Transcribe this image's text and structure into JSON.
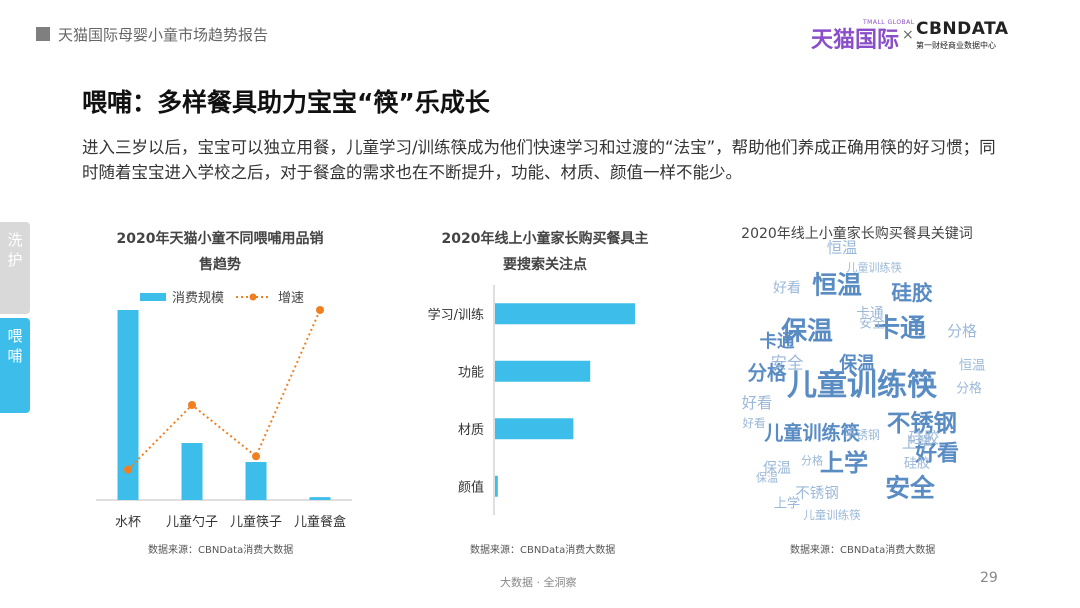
{
  "header": {
    "report_title": "天猫国际母婴小童市场趋势报告"
  },
  "logos": {
    "tmall_text": "天猫国际",
    "tmall_sub": "TMALL GLOBAL",
    "cross": "×",
    "cbn_text": "CBNDATA",
    "cbn_sub": "第一财经商业数据中心"
  },
  "main": {
    "title": "喂哺：多样餐具助力宝宝“筷”乐成长",
    "intro": "进入三岁以后，宝宝可以独立用餐，儿童学习/训练筷成为他们快速学习和过渡的“法宝”，帮助他们养成正确用筷的好习惯；同时随着宝宝进入学校之后，对于餐盒的需求也在不断提升，功能、材质、颜值一样不能少。"
  },
  "side_tabs": [
    {
      "label": "洗护",
      "active": false
    },
    {
      "label": "喂哺",
      "active": true
    }
  ],
  "chart_data": [
    {
      "type": "bar",
      "title": "2020年天猫小童不同喂哺用品销售趋势",
      "title_lines": [
        "2020年天猫小童不同喂哺用品销",
        "售趋势"
      ],
      "categories": [
        "水杯",
        "儿童勺子",
        "儿童筷子",
        "儿童餐盒"
      ],
      "series": [
        {
          "name": "消费规模",
          "kind": "bar",
          "values": [
            100,
            30,
            20,
            1.5
          ]
        },
        {
          "name": "增速",
          "kind": "line",
          "values": [
            16,
            50,
            23,
            100
          ]
        }
      ],
      "ylim": [
        0,
        100
      ],
      "legend": "top",
      "grid": false,
      "source": "数据来源：CBNData消费大数据"
    },
    {
      "type": "bar",
      "orientation": "horizontal",
      "title": "2020年线上小童家长购买餐具主要搜索关注点",
      "title_lines": [
        "2020年线上小童家长购买餐具主",
        "要搜索关注点"
      ],
      "categories": [
        "学习/训练",
        "功能",
        "材质",
        "颜值"
      ],
      "values": [
        100,
        68,
        56,
        2
      ],
      "xlim": [
        0,
        100
      ],
      "grid": false,
      "source": "数据来源：CBNData消费大数据"
    },
    {
      "type": "wordcloud",
      "title": "2020年线上小童家长购买餐具关键词",
      "words": [
        {
          "text": "儿童训练筷",
          "weight": 100
        },
        {
          "text": "卡通",
          "weight": 80
        },
        {
          "text": "保温",
          "weight": 80
        },
        {
          "text": "恒温",
          "weight": 75
        },
        {
          "text": "上学",
          "weight": 72
        },
        {
          "text": "安全",
          "weight": 75
        },
        {
          "text": "不锈钢",
          "weight": 68
        },
        {
          "text": "好看",
          "weight": 62
        },
        {
          "text": "硅胶",
          "weight": 55
        },
        {
          "text": "分格",
          "weight": 50
        },
        {
          "text": "儿童训练筷",
          "weight": 48
        },
        {
          "text": "卡通",
          "weight": 40
        },
        {
          "text": "保温",
          "weight": 42
        },
        {
          "text": "安全",
          "weight": 35
        },
        {
          "text": "恒温",
          "weight": 30
        },
        {
          "text": "上学",
          "weight": 30
        },
        {
          "text": "好看",
          "weight": 30
        },
        {
          "text": "硅胶",
          "weight": 30
        },
        {
          "text": "分格",
          "weight": 28
        },
        {
          "text": "不锈钢",
          "weight": 26
        },
        {
          "text": "好看",
          "weight": 24
        },
        {
          "text": "保温",
          "weight": 24
        },
        {
          "text": "卡通",
          "weight": 22
        },
        {
          "text": "硅胶",
          "weight": 20
        },
        {
          "text": "恒温",
          "weight": 20
        },
        {
          "text": "上学",
          "weight": 20
        },
        {
          "text": "安全",
          "weight": 18
        },
        {
          "text": "分格",
          "weight": 18
        },
        {
          "text": "不锈钢",
          "weight": 14
        },
        {
          "text": "儿童训练筷",
          "weight": 12
        },
        {
          "text": "儿童训练筷",
          "weight": 10
        },
        {
          "text": "分格",
          "weight": 10
        },
        {
          "text": "好看",
          "weight": 12
        },
        {
          "text": "保温",
          "weight": 10
        }
      ],
      "source": "数据来源：CBNData消费大数据"
    }
  ],
  "colors": {
    "bar": "#3dbde9",
    "line": "#f07f1f",
    "word_main": "#5a8cc4",
    "word_light": "#9bb8d8",
    "tab_active": "#3dbde9",
    "tab_inactive": "#d9d9d9"
  },
  "footer": {
    "text": "大数据 · 全洞察",
    "page": "29"
  }
}
